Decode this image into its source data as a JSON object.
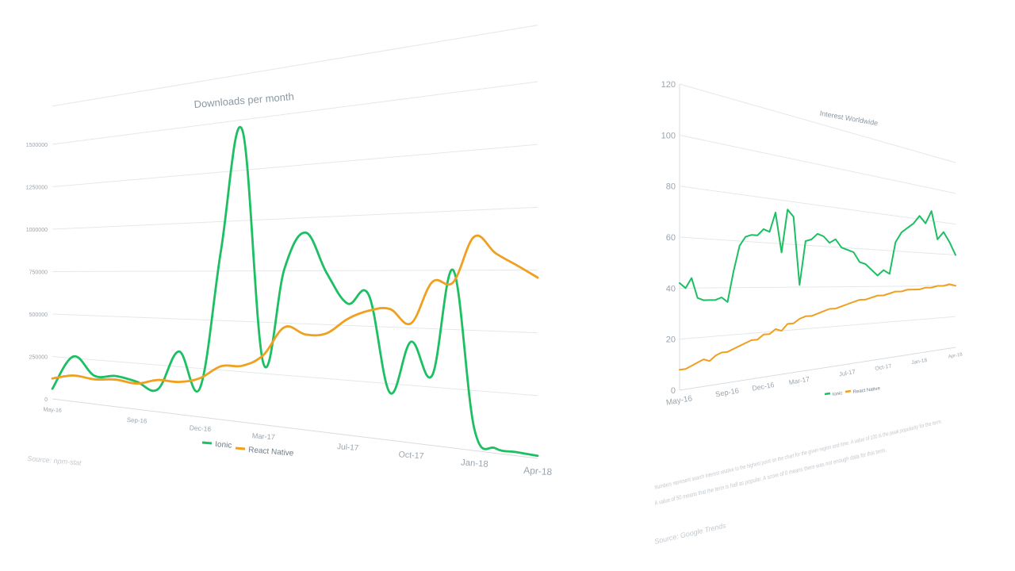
{
  "chart_data": [
    {
      "type": "line",
      "title": "Downloads per month",
      "y_ticks": [
        "0",
        "250000",
        "500000",
        "750000",
        "1000000",
        "1250000",
        "1500000"
      ],
      "ylim": [
        0,
        1500000
      ],
      "x_tick_labels": [
        "May-16",
        "Sep-16",
        "Dec-16",
        "Mar-17",
        "Jul-17",
        "Oct-17",
        "Jan-18",
        "Apr-18"
      ],
      "x_tick_months": [
        0,
        4,
        7,
        10,
        14,
        17,
        20,
        23
      ],
      "x_range_months": [
        0,
        23
      ],
      "legend_position": "bottom",
      "grid": true,
      "source": "Source: npm-stat",
      "series": [
        {
          "name": "Ionic",
          "color": "#1cbf62",
          "x_months": [
            0,
            1,
            2,
            3,
            4,
            5,
            6,
            7,
            8,
            9,
            10,
            11,
            12,
            13,
            14,
            15,
            16,
            17,
            18,
            19,
            20,
            21,
            22,
            23
          ],
          "values": [
            60000,
            260000,
            160000,
            170000,
            150000,
            120000,
            330000,
            150000,
            860000,
            1450000,
            300000,
            760000,
            930000,
            740000,
            600000,
            640000,
            210000,
            440000,
            300000,
            750000,
            90000,
            20000,
            15000,
            10000
          ]
        },
        {
          "name": "React Native",
          "color": "#f0a01f",
          "x_months": [
            0,
            1,
            2,
            3,
            4,
            5,
            6,
            7,
            8,
            9,
            10,
            11,
            12,
            13,
            14,
            15,
            16,
            17,
            18,
            19,
            20,
            21,
            22,
            23
          ],
          "values": [
            120000,
            150000,
            140000,
            150000,
            140000,
            170000,
            170000,
            200000,
            270000,
            280000,
            340000,
            480000,
            450000,
            460000,
            530000,
            570000,
            580000,
            520000,
            700000,
            700000,
            890000,
            820000,
            770000,
            720000
          ]
        }
      ]
    },
    {
      "type": "line",
      "title": "Interest Worldwide",
      "y_ticks": [
        "0",
        "20",
        "40",
        "60",
        "80",
        "100",
        "120"
      ],
      "ylim": [
        0,
        120
      ],
      "x_tick_labels": [
        "May-16",
        "Sep-16",
        "Dec-16",
        "Mar-17",
        "Jul-17",
        "Oct-17",
        "Jan-18",
        "Apr-18"
      ],
      "x_tick_months": [
        0,
        4,
        7,
        10,
        14,
        17,
        20,
        23
      ],
      "x_range_months": [
        0,
        23
      ],
      "legend_position": "bottom",
      "grid": true,
      "note_line1": "Numbers represent search interest relative to the highest point on the chart for the given region and time. A value of 100 is the peak popularity for the term.",
      "note_line2": "A value of 50 means that the term is half as popular. A score of 0 means there was not enough data for this term.",
      "source": "Source: Google Trends",
      "series": [
        {
          "name": "Ionic",
          "color": "#1cbf62",
          "x_months": [
            0,
            0.5,
            1,
            1.5,
            2,
            2.5,
            3,
            3.5,
            4,
            4.5,
            5,
            5.5,
            6,
            6.5,
            7,
            7.5,
            8,
            8.5,
            9,
            9.5,
            10,
            10.5,
            11,
            11.5,
            12,
            12.5,
            13,
            13.5,
            14,
            14.5,
            15,
            15.5,
            16,
            16.5,
            17,
            17.5,
            18,
            18.5,
            19,
            19.5,
            20,
            20.5,
            21,
            21.5,
            22,
            22.5,
            23
          ],
          "values": [
            42,
            40,
            44,
            36,
            35,
            35,
            35,
            36,
            34,
            47,
            58,
            62,
            63,
            63,
            66,
            65,
            74,
            56,
            76,
            73,
            41,
            62,
            63,
            66,
            65,
            62,
            64,
            60,
            59,
            58,
            53,
            52,
            49,
            46,
            49,
            47,
            65,
            71,
            74,
            77,
            82,
            78,
            86,
            69,
            74,
            68,
            60
          ]
        },
        {
          "name": "React Native",
          "color": "#f0a01f",
          "x_months": [
            0,
            0.5,
            1,
            1.5,
            2,
            2.5,
            3,
            3.5,
            4,
            4.5,
            5,
            5.5,
            6,
            6.5,
            7,
            7.5,
            8,
            8.5,
            9,
            9.5,
            10,
            10.5,
            11,
            11.5,
            12,
            12.5,
            13,
            13.5,
            14,
            14.5,
            15,
            15.5,
            16,
            16.5,
            17,
            17.5,
            18,
            18.5,
            19,
            19.5,
            20,
            20.5,
            21,
            21.5,
            22,
            22.5,
            23
          ],
          "values": [
            8,
            8,
            9,
            10,
            11,
            10,
            12,
            13,
            13,
            14,
            15,
            16,
            17,
            17,
            19,
            19,
            21,
            20,
            23,
            23,
            25,
            26,
            26,
            27,
            28,
            29,
            29,
            30,
            31,
            32,
            33,
            33,
            34,
            35,
            35,
            36,
            37,
            37,
            38,
            38,
            38,
            39,
            39,
            40,
            40,
            41,
            40
          ]
        }
      ]
    }
  ]
}
